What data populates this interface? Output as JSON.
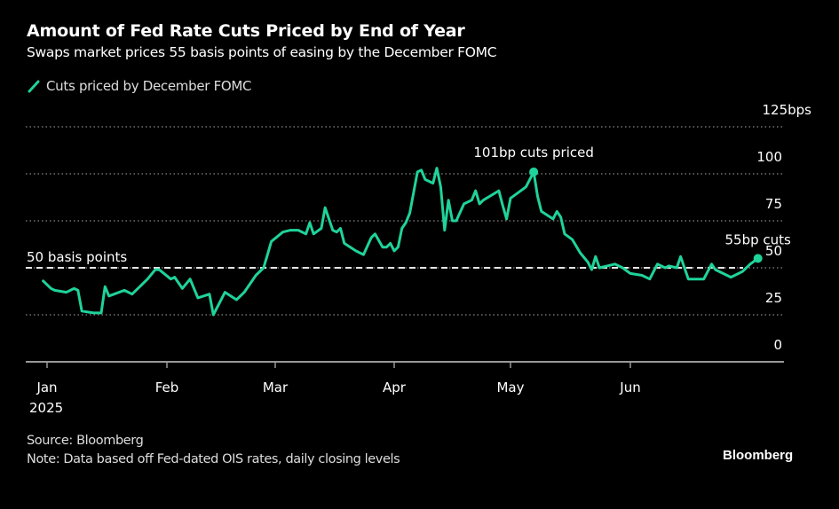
{
  "header": {
    "title": "Amount of Fed Rate Cuts Priced by End of Year",
    "subtitle": "Swaps market prices 55 basis points of easing by the December FOMC"
  },
  "legend": {
    "icon": "line-legend-icon",
    "label": "Cuts priced by December FOMC"
  },
  "footer": {
    "source": "Source: Bloomberg",
    "note": "Note: Data based off Fed-dated OIS rates, daily closing levels",
    "brand": "Bloomberg"
  },
  "colors": {
    "background": "#000000",
    "series": "#1fd39a",
    "text": "#ffffff",
    "grid": "#8a8a8a",
    "reference": "#e6e6e6"
  },
  "chart_data": {
    "type": "line",
    "title": "Amount of Fed Rate Cuts Priced by End of Year",
    "subtitle": "Swaps market prices 55 basis points of easing by the December FOMC",
    "xlabel": "",
    "ylabel": "bps",
    "x_axis": {
      "range": [
        "2024-12-27",
        "2025-07-31"
      ],
      "ticks": [
        {
          "date": "2025-01-01",
          "label": "Jan",
          "sublabel": "2025"
        },
        {
          "date": "2025-02-01",
          "label": "Feb"
        },
        {
          "date": "2025-03-01",
          "label": "Mar"
        },
        {
          "date": "2025-04-01",
          "label": "Apr"
        },
        {
          "date": "2025-05-01",
          "label": "May"
        },
        {
          "date": "2025-06-01",
          "label": "Jun"
        }
      ]
    },
    "y_axis": {
      "range": [
        0,
        125
      ],
      "ticks": [
        0,
        25,
        50,
        75,
        100,
        125
      ],
      "tick_labels": [
        "0",
        "25",
        "50",
        "75",
        "100",
        "125bps"
      ],
      "position": "right",
      "grid": "dotted"
    },
    "legend_position": "top-left",
    "series": [
      {
        "name": "Cuts priced by December FOMC",
        "points": [
          [
            "2024-12-31",
            43
          ],
          [
            "2025-01-02",
            39
          ],
          [
            "2025-01-03",
            38
          ],
          [
            "2025-01-06",
            37
          ],
          [
            "2025-01-07",
            38
          ],
          [
            "2025-01-08",
            39
          ],
          [
            "2025-01-09",
            38
          ],
          [
            "2025-01-10",
            27
          ],
          [
            "2025-01-13",
            26
          ],
          [
            "2025-01-14",
            26
          ],
          [
            "2025-01-15",
            26
          ],
          [
            "2025-01-16",
            40
          ],
          [
            "2025-01-17",
            35
          ],
          [
            "2025-01-21",
            38
          ],
          [
            "2025-01-23",
            36
          ],
          [
            "2025-01-27",
            44
          ],
          [
            "2025-01-29",
            49
          ],
          [
            "2025-01-30",
            49
          ],
          [
            "2025-02-02",
            44
          ],
          [
            "2025-02-03",
            45
          ],
          [
            "2025-02-05",
            39
          ],
          [
            "2025-02-07",
            44
          ],
          [
            "2025-02-09",
            34
          ],
          [
            "2025-02-12",
            36
          ],
          [
            "2025-02-13",
            25
          ],
          [
            "2025-02-16",
            37
          ],
          [
            "2025-02-19",
            33
          ],
          [
            "2025-02-21",
            37
          ],
          [
            "2025-02-24",
            46
          ],
          [
            "2025-02-26",
            50
          ],
          [
            "2025-02-27",
            57
          ],
          [
            "2025-02-28",
            64
          ],
          [
            "2025-03-03",
            69
          ],
          [
            "2025-03-05",
            70
          ],
          [
            "2025-03-07",
            70
          ],
          [
            "2025-03-09",
            68
          ],
          [
            "2025-03-10",
            74
          ],
          [
            "2025-03-11",
            68
          ],
          [
            "2025-03-13",
            71
          ],
          [
            "2025-03-14",
            82
          ],
          [
            "2025-03-16",
            70
          ],
          [
            "2025-03-17",
            69
          ],
          [
            "2025-03-18",
            71
          ],
          [
            "2025-03-19",
            63
          ],
          [
            "2025-03-22",
            59
          ],
          [
            "2025-03-24",
            57
          ],
          [
            "2025-03-26",
            66
          ],
          [
            "2025-03-27",
            68
          ],
          [
            "2025-03-29",
            61
          ],
          [
            "2025-03-30",
            61
          ],
          [
            "2025-03-31",
            63
          ],
          [
            "2025-04-01",
            59
          ],
          [
            "2025-04-02",
            61
          ],
          [
            "2025-04-03",
            71
          ],
          [
            "2025-04-04",
            74
          ],
          [
            "2025-04-05",
            79
          ],
          [
            "2025-04-07",
            101
          ],
          [
            "2025-04-08",
            102
          ],
          [
            "2025-04-09",
            97
          ],
          [
            "2025-04-11",
            95
          ],
          [
            "2025-04-12",
            103
          ],
          [
            "2025-04-13",
            93
          ],
          [
            "2025-04-14",
            70
          ],
          [
            "2025-04-15",
            86
          ],
          [
            "2025-04-16",
            75
          ],
          [
            "2025-04-17",
            75
          ],
          [
            "2025-04-19",
            84
          ],
          [
            "2025-04-21",
            86
          ],
          [
            "2025-04-22",
            91
          ],
          [
            "2025-04-23",
            84
          ],
          [
            "2025-04-24",
            86
          ],
          [
            "2025-04-28",
            91
          ],
          [
            "2025-04-29",
            83
          ],
          [
            "2025-04-30",
            76
          ],
          [
            "2025-05-01",
            87
          ],
          [
            "2025-05-03",
            90
          ],
          [
            "2025-05-05",
            93
          ],
          [
            "2025-05-07",
            101
          ],
          [
            "2025-05-08",
            88
          ],
          [
            "2025-05-09",
            80
          ],
          [
            "2025-05-12",
            76
          ],
          [
            "2025-05-13",
            80
          ],
          [
            "2025-05-14",
            77
          ],
          [
            "2025-05-15",
            68
          ],
          [
            "2025-05-17",
            65
          ],
          [
            "2025-05-19",
            58
          ],
          [
            "2025-05-21",
            53
          ],
          [
            "2025-05-22",
            49
          ],
          [
            "2025-05-23",
            56
          ],
          [
            "2025-05-24",
            50
          ],
          [
            "2025-05-26",
            51
          ],
          [
            "2025-05-28",
            52
          ],
          [
            "2025-05-30",
            50
          ],
          [
            "2025-06-01",
            47
          ],
          [
            "2025-06-04",
            46
          ],
          [
            "2025-06-06",
            44
          ],
          [
            "2025-06-08",
            52
          ],
          [
            "2025-06-10",
            50
          ],
          [
            "2025-06-11",
            51
          ],
          [
            "2025-06-13",
            50
          ],
          [
            "2025-06-14",
            56
          ],
          [
            "2025-06-16",
            44
          ],
          [
            "2025-06-20",
            44
          ],
          [
            "2025-06-22",
            52
          ],
          [
            "2025-06-23",
            49
          ],
          [
            "2025-06-25",
            47
          ],
          [
            "2025-06-27",
            45
          ],
          [
            "2025-06-29",
            47
          ],
          [
            "2025-06-30",
            48
          ],
          [
            "2025-07-02",
            52
          ],
          [
            "2025-07-04",
            55
          ]
        ]
      }
    ],
    "reference_lines": [
      {
        "y": 50,
        "label": "50 basis points",
        "style": "dashed"
      }
    ],
    "annotations": [
      {
        "text": "101bp cuts priced",
        "date": "2025-05-07",
        "y": 101,
        "marker": "dot"
      },
      {
        "text": "55bp cuts",
        "date": "2025-07-04",
        "y": 55,
        "marker": "dot"
      }
    ]
  }
}
